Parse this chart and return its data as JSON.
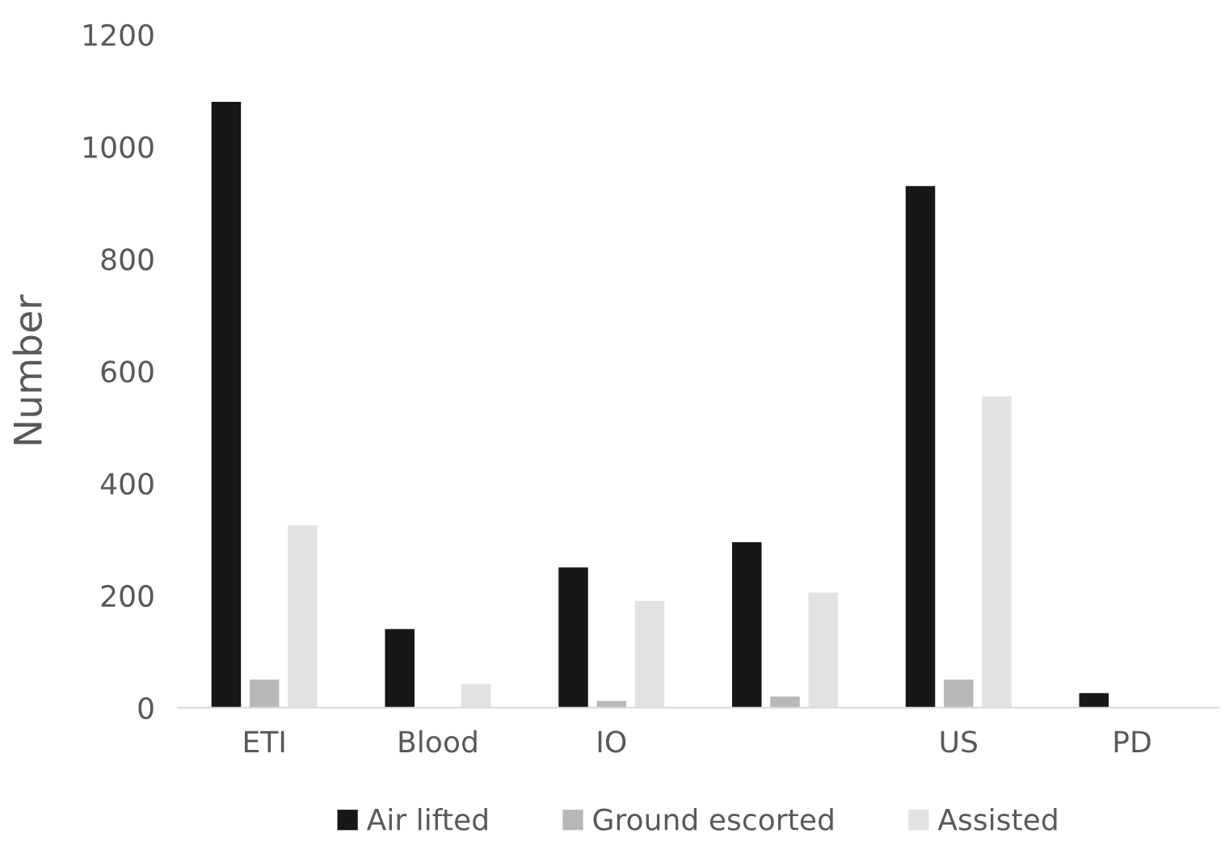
{
  "chart_data": {
    "type": "bar",
    "ylabel": "Number",
    "categories": [
      "ETI",
      "Blood",
      "IO",
      null,
      "US",
      "PD"
    ],
    "series": [
      {
        "name": "Air lifted",
        "color": "#171717",
        "values": [
          1080,
          140,
          250,
          295,
          930,
          26
        ]
      },
      {
        "name": "Ground escorted",
        "color": "#b8b8b8",
        "values": [
          50,
          null,
          12,
          20,
          50,
          null
        ]
      },
      {
        "name": "Assisted",
        "color": "#e2e2e2",
        "values": [
          325,
          42,
          190,
          205,
          555,
          null
        ]
      }
    ],
    "ylim": [
      0,
      1200
    ],
    "yticks": [
      0,
      200,
      400,
      600,
      800,
      1000,
      1200
    ],
    "grid": false,
    "legend": "bottom"
  }
}
